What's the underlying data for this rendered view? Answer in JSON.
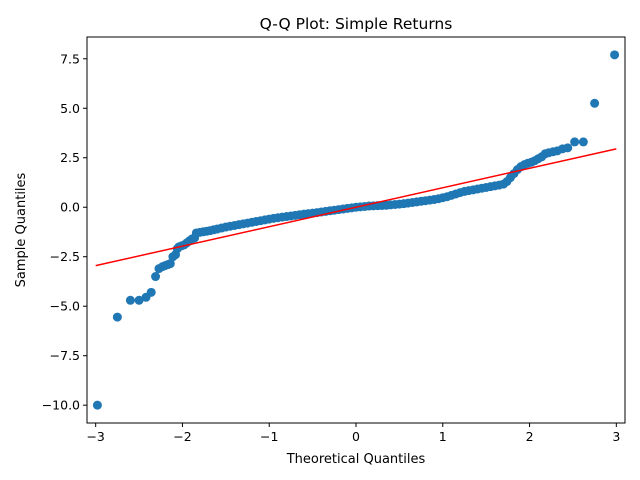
{
  "chart_data": {
    "type": "scatter",
    "title": "Q-Q Plot: Simple Returns",
    "xlabel": "Theoretical Quantiles",
    "ylabel": "Sample Quantiles",
    "xlim": [
      -3.1,
      3.1
    ],
    "ylim": [
      -10.9,
      8.6
    ],
    "xticks": [
      -3,
      -2,
      -1,
      0,
      1,
      2,
      3
    ],
    "xtick_labels": [
      "−3",
      "−2",
      "−1",
      "0",
      "1",
      "2",
      "3"
    ],
    "yticks": [
      -10.0,
      -7.5,
      -5.0,
      -2.5,
      0.0,
      2.5,
      5.0,
      7.5
    ],
    "ytick_labels": [
      "−10.0",
      "−7.5",
      "−5.0",
      "−2.5",
      "0.0",
      "2.5",
      "5.0",
      "7.5"
    ],
    "grid": false,
    "points_color": "#1f77b4",
    "reference_line_color": "#ff0000",
    "points": [
      [
        -2.98,
        -10.0
      ],
      [
        -2.75,
        -5.55
      ],
      [
        -2.6,
        -4.7
      ],
      [
        -2.5,
        -4.7
      ],
      [
        -2.42,
        -4.55
      ],
      [
        -2.36,
        -4.3
      ],
      [
        -2.31,
        -3.5
      ],
      [
        -2.27,
        -3.1
      ],
      [
        -2.23,
        -3.0
      ],
      [
        -2.2,
        -2.95
      ],
      [
        -2.17,
        -2.9
      ],
      [
        -2.14,
        -2.85
      ],
      [
        -2.11,
        -2.5
      ],
      [
        -2.08,
        -2.4
      ],
      [
        -2.06,
        -2.1
      ],
      [
        -2.04,
        -2.0
      ],
      [
        -2.01,
        -1.95
      ],
      [
        -1.98,
        -1.9
      ],
      [
        -1.95,
        -1.8
      ],
      [
        -1.92,
        -1.7
      ],
      [
        -1.89,
        -1.6
      ],
      [
        -1.86,
        -1.55
      ],
      [
        -1.84,
        -1.3
      ],
      [
        -1.8,
        -1.27
      ],
      [
        -1.76,
        -1.24
      ],
      [
        -1.72,
        -1.21
      ],
      [
        -1.68,
        -1.18
      ],
      [
        -1.64,
        -1.14
      ],
      [
        -1.6,
        -1.1
      ],
      [
        -1.55,
        -1.05
      ],
      [
        -1.5,
        -1.0
      ],
      [
        -1.45,
        -0.96
      ],
      [
        -1.4,
        -0.92
      ],
      [
        -1.35,
        -0.88
      ],
      [
        -1.3,
        -0.84
      ],
      [
        -1.25,
        -0.8
      ],
      [
        -1.2,
        -0.76
      ],
      [
        -1.15,
        -0.72
      ],
      [
        -1.1,
        -0.68
      ],
      [
        -1.05,
        -0.64
      ],
      [
        -1.0,
        -0.6
      ],
      [
        -0.95,
        -0.56
      ],
      [
        -0.9,
        -0.53
      ],
      [
        -0.85,
        -0.5
      ],
      [
        -0.8,
        -0.47
      ],
      [
        -0.75,
        -0.44
      ],
      [
        -0.7,
        -0.41
      ],
      [
        -0.65,
        -0.38
      ],
      [
        -0.6,
        -0.35
      ],
      [
        -0.55,
        -0.32
      ],
      [
        -0.5,
        -0.3
      ],
      [
        -0.45,
        -0.27
      ],
      [
        -0.4,
        -0.24
      ],
      [
        -0.35,
        -0.21
      ],
      [
        -0.3,
        -0.18
      ],
      [
        -0.25,
        -0.15
      ],
      [
        -0.2,
        -0.12
      ],
      [
        -0.15,
        -0.09
      ],
      [
        -0.1,
        -0.06
      ],
      [
        -0.05,
        -0.03
      ],
      [
        0.0,
        0.0
      ],
      [
        0.05,
        0.02
      ],
      [
        0.1,
        0.04
      ],
      [
        0.15,
        0.06
      ],
      [
        0.2,
        0.07
      ],
      [
        0.25,
        0.08
      ],
      [
        0.3,
        0.09
      ],
      [
        0.35,
        0.1
      ],
      [
        0.4,
        0.12
      ],
      [
        0.45,
        0.14
      ],
      [
        0.5,
        0.16
      ],
      [
        0.55,
        0.18
      ],
      [
        0.6,
        0.21
      ],
      [
        0.65,
        0.24
      ],
      [
        0.7,
        0.27
      ],
      [
        0.75,
        0.3
      ],
      [
        0.8,
        0.33
      ],
      [
        0.85,
        0.36
      ],
      [
        0.9,
        0.39
      ],
      [
        0.95,
        0.43
      ],
      [
        1.0,
        0.48
      ],
      [
        1.05,
        0.53
      ],
      [
        1.1,
        0.6
      ],
      [
        1.15,
        0.67
      ],
      [
        1.2,
        0.74
      ],
      [
        1.25,
        0.8
      ],
      [
        1.3,
        0.84
      ],
      [
        1.35,
        0.88
      ],
      [
        1.4,
        0.92
      ],
      [
        1.45,
        0.96
      ],
      [
        1.5,
        1.0
      ],
      [
        1.55,
        1.04
      ],
      [
        1.6,
        1.08
      ],
      [
        1.65,
        1.12
      ],
      [
        1.7,
        1.17
      ],
      [
        1.74,
        1.3
      ],
      [
        1.78,
        1.5
      ],
      [
        1.82,
        1.7
      ],
      [
        1.86,
        1.9
      ],
      [
        1.9,
        2.05
      ],
      [
        1.94,
        2.15
      ],
      [
        1.98,
        2.22
      ],
      [
        2.02,
        2.27
      ],
      [
        2.06,
        2.35
      ],
      [
        2.1,
        2.45
      ],
      [
        2.14,
        2.55
      ],
      [
        2.18,
        2.7
      ],
      [
        2.22,
        2.75
      ],
      [
        2.27,
        2.8
      ],
      [
        2.32,
        2.85
      ],
      [
        2.38,
        2.95
      ],
      [
        2.44,
        3.0
      ],
      [
        2.52,
        3.3
      ],
      [
        2.62,
        3.3
      ],
      [
        2.75,
        5.25
      ],
      [
        2.98,
        7.7
      ]
    ],
    "reference_line": [
      [
        -3.0,
        -2.95
      ],
      [
        3.0,
        2.95
      ]
    ]
  }
}
